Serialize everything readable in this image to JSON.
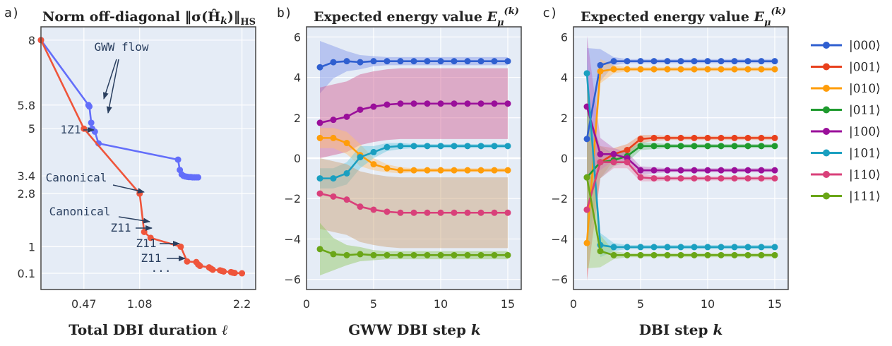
{
  "chart_data": [
    {
      "panel": "a)",
      "type": "line",
      "title": "Norm off-diagonal ‖σ(Ĥ_k)‖_HS",
      "xlabel": "Total DBI duration ℓ",
      "xticks": [
        "0.47",
        "1.08",
        "2.2"
      ],
      "xlim": [
        0.0,
        2.35
      ],
      "yticks": [
        "8",
        "5.8",
        "5",
        "3.4",
        "2.8",
        "1",
        "0.1"
      ],
      "ylim": [
        -0.45,
        8.45
      ],
      "series": [
        {
          "color": "#636efa",
          "x": [
            0.0,
            0.52,
            0.53,
            0.55,
            0.56,
            0.59,
            0.63,
            1.5,
            1.52,
            1.54,
            1.56,
            1.58,
            1.6,
            1.62,
            1.64,
            1.66,
            1.68,
            1.7,
            1.72
          ],
          "y": [
            8.0,
            5.8,
            5.75,
            5.2,
            5.0,
            4.9,
            4.5,
            3.95,
            3.6,
            3.45,
            3.4,
            3.38,
            3.37,
            3.36,
            3.36,
            3.35,
            3.35,
            3.35,
            3.35
          ]
        },
        {
          "color": "#ef553b",
          "x": [
            0.0,
            0.47,
            1.08,
            1.13,
            1.2,
            1.53,
            1.6,
            1.7,
            1.72,
            1.74,
            1.84,
            1.86,
            1.88,
            1.96,
            1.98,
            2.0,
            2.08,
            2.1,
            2.12,
            2.2
          ],
          "y": [
            8.0,
            5.0,
            2.8,
            1.5,
            1.3,
            1.0,
            0.5,
            0.48,
            0.4,
            0.35,
            0.3,
            0.26,
            0.22,
            0.2,
            0.18,
            0.16,
            0.14,
            0.12,
            0.11,
            0.1
          ]
        }
      ],
      "annotations": [
        {
          "text": "GWW flow"
        },
        {
          "text": "1Z1"
        },
        {
          "text": "Canonical"
        },
        {
          "text": "Canonical"
        },
        {
          "text": "Z11"
        },
        {
          "text": "Z11"
        },
        {
          "text": "Z11"
        },
        {
          "text": "..."
        }
      ]
    },
    {
      "panel": "b)",
      "type": "line",
      "title": "Expected energy value E_μ^(k)",
      "xlabel": "GWW DBI step k",
      "xticks": [
        0,
        5,
        10,
        15
      ],
      "xlim": [
        0,
        16
      ],
      "yticks": [
        6,
        4,
        2,
        0,
        -2,
        -4,
        -6
      ],
      "yticks_label": [
        "6",
        "4",
        "2",
        "0",
        "−2",
        "−4",
        "−6"
      ],
      "ylim": [
        -6.5,
        6.5
      ],
      "x": [
        1,
        2,
        3,
        4,
        5,
        6,
        7,
        8,
        9,
        10,
        11,
        12,
        13,
        14,
        15
      ],
      "series": [
        {
          "name": "|000⟩",
          "color": "#2f5fd0",
          "bandColor": "#7f95e8",
          "values": [
            4.5,
            4.75,
            4.8,
            4.75,
            4.8,
            4.8,
            4.8,
            4.8,
            4.8,
            4.8,
            4.8,
            4.8,
            4.8,
            4.8,
            4.8
          ],
          "band": [
            1.3,
            0.8,
            0.5,
            0.35,
            0.25,
            0.2,
            0.2,
            0.2,
            0.2,
            0.2,
            0.2,
            0.2,
            0.2,
            0.2,
            0.2
          ]
        },
        {
          "name": "|100⟩",
          "color": "#9a0f9a",
          "bandColor": "#d05a8e",
          "values": [
            1.75,
            1.9,
            2.05,
            2.4,
            2.55,
            2.65,
            2.7,
            2.7,
            2.7,
            2.7,
            2.7,
            2.7,
            2.7,
            2.7,
            2.7
          ],
          "band": [
            1.75,
            1.75,
            1.75,
            1.75,
            1.75,
            1.75,
            1.75,
            1.75,
            1.75,
            1.75,
            1.75,
            1.75,
            1.75,
            1.75,
            1.75
          ]
        },
        {
          "name": "|010⟩",
          "color": "#ff9d0a",
          "bandColor": "#ffc070",
          "values": [
            1.0,
            1.0,
            0.75,
            0.15,
            -0.3,
            -0.5,
            -0.6,
            -0.6,
            -0.6,
            -0.6,
            -0.6,
            -0.6,
            -0.6,
            -0.6,
            -0.6
          ],
          "band": [
            0.5,
            0.5,
            0.55,
            0.55,
            0.3,
            0.2,
            0.15,
            0.1,
            0.1,
            0.1,
            0.1,
            0.1,
            0.1,
            0.1,
            0.1
          ]
        },
        {
          "name": "|101⟩",
          "color": "#1a9fc0",
          "bandColor": "#6ac9dd",
          "values": [
            -1.0,
            -1.0,
            -0.75,
            0.05,
            0.3,
            0.55,
            0.6,
            0.6,
            0.6,
            0.6,
            0.6,
            0.6,
            0.6,
            0.6,
            0.6
          ],
          "band": [
            0.5,
            0.5,
            0.55,
            0.55,
            0.3,
            0.2,
            0.15,
            0.1,
            0.1,
            0.1,
            0.1,
            0.1,
            0.1,
            0.1,
            0.1
          ]
        },
        {
          "name": "|110⟩",
          "color": "#d9407a",
          "bandColor": "#c9a070",
          "values": [
            -1.75,
            -1.9,
            -2.05,
            -2.4,
            -2.55,
            -2.65,
            -2.7,
            -2.7,
            -2.7,
            -2.7,
            -2.7,
            -2.7,
            -2.7,
            -2.7,
            -2.7
          ],
          "band": [
            1.75,
            1.75,
            1.75,
            1.75,
            1.75,
            1.75,
            1.75,
            1.75,
            1.75,
            1.75,
            1.75,
            1.75,
            1.75,
            1.75,
            1.75
          ]
        },
        {
          "name": "|111⟩",
          "color": "#6aa617",
          "bandColor": "#8ec85a",
          "values": [
            -4.5,
            -4.75,
            -4.8,
            -4.75,
            -4.8,
            -4.8,
            -4.8,
            -4.8,
            -4.8,
            -4.8,
            -4.8,
            -4.8,
            -4.8,
            -4.8,
            -4.8
          ],
          "band": [
            1.3,
            0.8,
            0.5,
            0.35,
            0.25,
            0.2,
            0.2,
            0.2,
            0.2,
            0.2,
            0.2,
            0.2,
            0.2,
            0.2,
            0.2
          ]
        }
      ]
    },
    {
      "panel": "c)",
      "type": "line",
      "title": "Expected energy value E_μ^(k)",
      "xlabel": "DBI step k",
      "xticks": [
        0,
        5,
        10,
        15
      ],
      "xlim": [
        0,
        16
      ],
      "yticks": [
        6,
        4,
        2,
        0,
        -2,
        -4,
        -6
      ],
      "yticks_label": [
        "6",
        "4",
        "2",
        "0",
        "−2",
        "−4",
        "−6"
      ],
      "ylim": [
        -6.5,
        6.5
      ],
      "x": [
        1,
        2,
        3,
        4,
        5,
        6,
        7,
        8,
        9,
        10,
        11,
        12,
        13,
        14,
        15
      ],
      "series": [
        {
          "name": "|000⟩",
          "color": "#2f5fd0",
          "bandColor": "#7f95e8",
          "values": [
            0.95,
            4.6,
            4.8,
            4.8,
            4.8,
            4.8,
            4.8,
            4.8,
            4.8,
            4.8,
            4.8,
            4.8,
            4.8,
            4.8,
            4.8
          ],
          "band": [
            4.5,
            0.8,
            0.2,
            0.1,
            0.1,
            0.1,
            0.1,
            0.1,
            0.1,
            0.1,
            0.1,
            0.1,
            0.1,
            0.1,
            0.1
          ]
        },
        {
          "name": "|001⟩",
          "color": "#e8401c",
          "bandColor": "#f09060",
          "values": [
            -2.55,
            -0.2,
            0.2,
            0.4,
            0.95,
            1.0,
            1.0,
            1.0,
            1.0,
            1.0,
            1.0,
            1.0,
            1.0,
            1.0,
            1.0
          ],
          "band": [
            3.5,
            0.8,
            0.3,
            0.3,
            0.2,
            0.15,
            0.1,
            0.1,
            0.1,
            0.1,
            0.1,
            0.1,
            0.1,
            0.1,
            0.1
          ]
        },
        {
          "name": "|010⟩",
          "color": "#ff9d0a",
          "bandColor": "#ffc070",
          "values": [
            -4.2,
            4.3,
            4.4,
            4.4,
            4.4,
            4.4,
            4.4,
            4.4,
            4.4,
            4.4,
            4.4,
            4.4,
            4.4,
            4.4,
            4.4
          ],
          "band": [
            0.6,
            0.6,
            0.2,
            0.1,
            0.1,
            0.1,
            0.1,
            0.1,
            0.1,
            0.1,
            0.1,
            0.1,
            0.1,
            0.1,
            0.1
          ]
        },
        {
          "name": "|011⟩",
          "color": "#1f9a2e",
          "bandColor": "#70c080",
          "values": [
            -0.95,
            -0.2,
            -0.1,
            0.1,
            0.6,
            0.6,
            0.6,
            0.6,
            0.6,
            0.6,
            0.6,
            0.6,
            0.6,
            0.6,
            0.6
          ],
          "band": [
            3.5,
            0.8,
            0.3,
            0.3,
            0.2,
            0.15,
            0.1,
            0.1,
            0.1,
            0.1,
            0.1,
            0.1,
            0.1,
            0.1,
            0.1
          ]
        },
        {
          "name": "|100⟩",
          "color": "#9a0f9a",
          "bandColor": "#c070c0",
          "values": [
            2.55,
            0.2,
            0.2,
            0.0,
            -0.6,
            -0.6,
            -0.6,
            -0.6,
            -0.6,
            -0.6,
            -0.6,
            -0.6,
            -0.6,
            -0.6,
            -0.6
          ],
          "band": [
            3.5,
            0.8,
            0.3,
            0.3,
            0.2,
            0.15,
            0.1,
            0.1,
            0.1,
            0.1,
            0.1,
            0.1,
            0.1,
            0.1,
            0.1
          ]
        },
        {
          "name": "|101⟩",
          "color": "#1a9fc0",
          "bandColor": "#6ac9dd",
          "values": [
            4.2,
            -4.3,
            -4.4,
            -4.4,
            -4.4,
            -4.4,
            -4.4,
            -4.4,
            -4.4,
            -4.4,
            -4.4,
            -4.4,
            -4.4,
            -4.4,
            -4.4
          ],
          "band": [
            0.6,
            0.6,
            0.2,
            0.1,
            0.1,
            0.1,
            0.1,
            0.1,
            0.1,
            0.1,
            0.1,
            0.1,
            0.1,
            0.1,
            0.1
          ]
        },
        {
          "name": "|110⟩",
          "color": "#d9407a",
          "bandColor": "#e890b0",
          "values": [
            -2.55,
            -0.2,
            -0.2,
            -0.2,
            -0.95,
            -1.0,
            -1.0,
            -1.0,
            -1.0,
            -1.0,
            -1.0,
            -1.0,
            -1.0,
            -1.0,
            -1.0
          ],
          "band": [
            3.5,
            0.8,
            0.3,
            0.3,
            0.2,
            0.15,
            0.1,
            0.1,
            0.1,
            0.1,
            0.1,
            0.1,
            0.1,
            0.1,
            0.1
          ]
        },
        {
          "name": "|111⟩",
          "color": "#6aa617",
          "bandColor": "#a0d070",
          "values": [
            -0.95,
            -4.6,
            -4.8,
            -4.8,
            -4.8,
            -4.8,
            -4.8,
            -4.8,
            -4.8,
            -4.8,
            -4.8,
            -4.8,
            -4.8,
            -4.8,
            -4.8
          ],
          "band": [
            4.5,
            0.8,
            0.2,
            0.1,
            0.1,
            0.1,
            0.1,
            0.1,
            0.1,
            0.1,
            0.1,
            0.1,
            0.1,
            0.1,
            0.1
          ]
        }
      ]
    }
  ],
  "legend": {
    "placement": "right",
    "items": [
      {
        "label": "|000⟩",
        "color": "#2f5fd0"
      },
      {
        "label": "|001⟩",
        "color": "#e8401c"
      },
      {
        "label": "|010⟩",
        "color": "#ff9d0a"
      },
      {
        "label": "|011⟩",
        "color": "#1f9a2e"
      },
      {
        "label": "|100⟩",
        "color": "#9a0f9a"
      },
      {
        "label": "|101⟩",
        "color": "#1a9fc0"
      },
      {
        "label": "|110⟩",
        "color": "#d9407a"
      },
      {
        "label": "|111⟩",
        "color": "#6aa617"
      }
    ]
  },
  "colors": {
    "plot_bg": "#e5ecf6",
    "grid": "#ffffff",
    "axis": "#444444"
  }
}
